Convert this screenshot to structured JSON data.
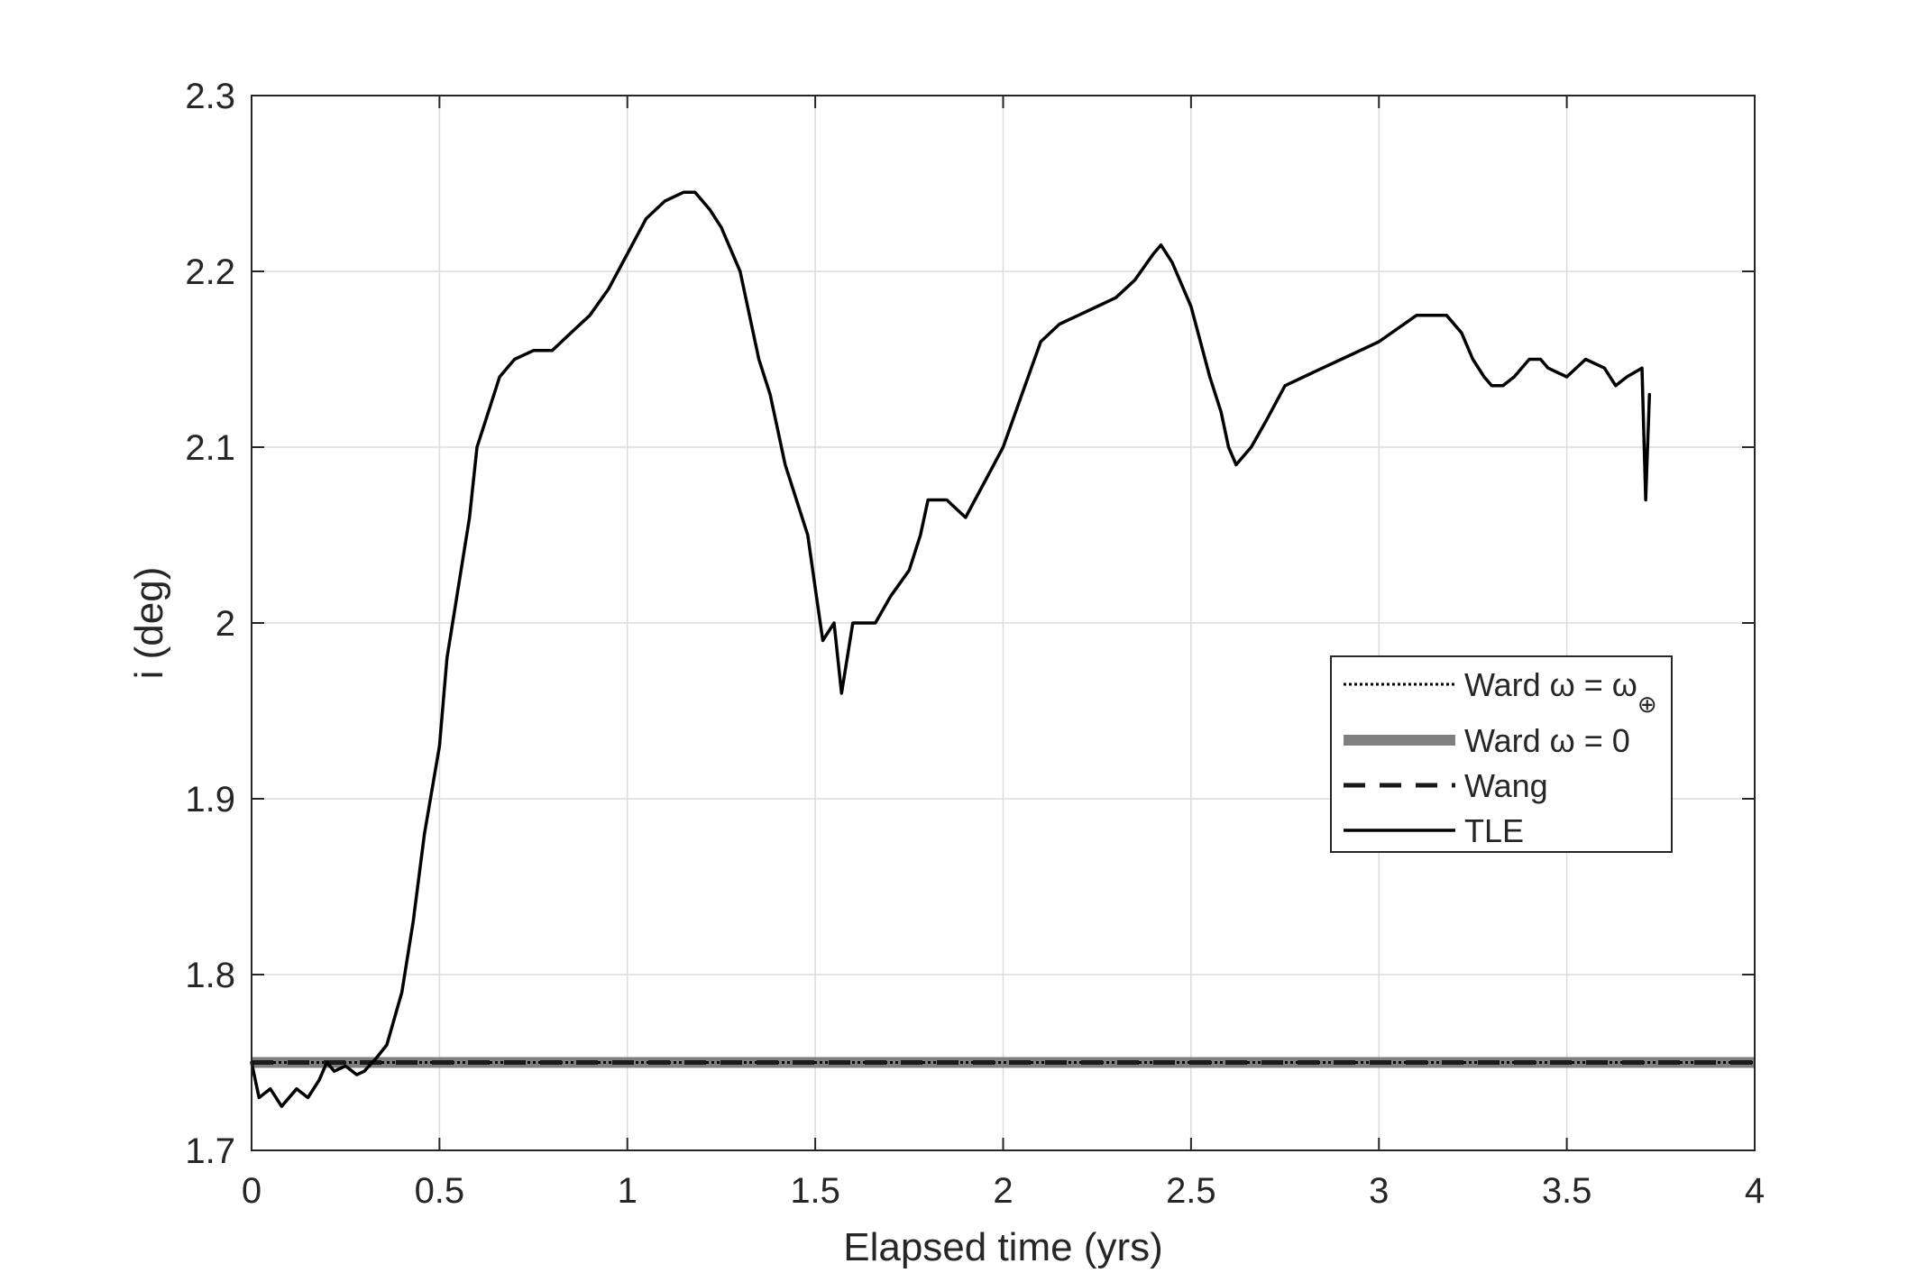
{
  "chart_data": {
    "type": "line",
    "xlabel": "Elapsed time (yrs)",
    "ylabel": "i (deg)",
    "xlim": [
      0,
      4
    ],
    "ylim": [
      1.7,
      2.3
    ],
    "x_ticks": [
      "0",
      "0.5",
      "1",
      "1.5",
      "2",
      "2.5",
      "3",
      "3.5",
      "4"
    ],
    "y_ticks": [
      "1.7",
      "1.8",
      "1.9",
      "2",
      "2.1",
      "2.2",
      "2.3"
    ],
    "grid": true,
    "legend_position": "right",
    "series": [
      {
        "name": "Ward ω = ω⊕",
        "legend_text": "Ward ω = ω",
        "legend_subscript": "⊕",
        "style": "dotted",
        "color": "#000000",
        "x": [
          0,
          4
        ],
        "y": [
          1.75,
          1.75
        ]
      },
      {
        "name": "Ward ω = 0",
        "legend_text": "Ward ω = 0",
        "style": "thick",
        "color": "#808080",
        "x": [
          0,
          4
        ],
        "y": [
          1.75,
          1.75
        ]
      },
      {
        "name": "Wang",
        "legend_text": "Wang",
        "style": "dashed",
        "color": "#1a1a1a",
        "x": [
          0,
          4
        ],
        "y": [
          1.75,
          1.75
        ]
      },
      {
        "name": "TLE",
        "legend_text": "TLE",
        "style": "solid",
        "color": "#000000",
        "x": [
          0,
          0.02,
          0.05,
          0.08,
          0.12,
          0.15,
          0.18,
          0.2,
          0.22,
          0.25,
          0.28,
          0.3,
          0.33,
          0.36,
          0.4,
          0.43,
          0.46,
          0.5,
          0.52,
          0.55,
          0.58,
          0.6,
          0.63,
          0.66,
          0.7,
          0.75,
          0.8,
          0.85,
          0.9,
          0.95,
          1.0,
          1.05,
          1.1,
          1.15,
          1.18,
          1.22,
          1.25,
          1.3,
          1.35,
          1.38,
          1.42,
          1.45,
          1.48,
          1.5,
          1.52,
          1.55,
          1.57,
          1.6,
          1.63,
          1.66,
          1.7,
          1.75,
          1.78,
          1.8,
          1.85,
          1.9,
          1.95,
          2.0,
          2.05,
          2.1,
          2.15,
          2.2,
          2.25,
          2.3,
          2.35,
          2.4,
          2.42,
          2.45,
          2.5,
          2.55,
          2.58,
          2.6,
          2.62,
          2.64,
          2.66,
          2.7,
          2.75,
          2.8,
          2.85,
          2.9,
          3.0,
          3.1,
          3.15,
          3.18,
          3.22,
          3.25,
          3.28,
          3.3,
          3.33,
          3.36,
          3.4,
          3.43,
          3.45,
          3.5,
          3.55,
          3.6,
          3.63,
          3.66,
          3.7,
          3.71,
          3.72
        ],
        "y": [
          1.75,
          1.73,
          1.735,
          1.725,
          1.735,
          1.73,
          1.74,
          1.75,
          1.745,
          1.748,
          1.743,
          1.745,
          1.752,
          1.76,
          1.79,
          1.83,
          1.88,
          1.93,
          1.98,
          2.02,
          2.06,
          2.1,
          2.12,
          2.14,
          2.15,
          2.155,
          2.155,
          2.165,
          2.175,
          2.19,
          2.21,
          2.23,
          2.24,
          2.245,
          2.245,
          2.235,
          2.225,
          2.2,
          2.15,
          2.13,
          2.09,
          2.07,
          2.05,
          2.02,
          1.99,
          2.0,
          1.96,
          2.0,
          2.0,
          2.0,
          2.015,
          2.03,
          2.05,
          2.07,
          2.07,
          2.06,
          2.08,
          2.1,
          2.13,
          2.16,
          2.17,
          2.175,
          2.18,
          2.185,
          2.195,
          2.21,
          2.215,
          2.205,
          2.18,
          2.14,
          2.12,
          2.1,
          2.09,
          2.095,
          2.1,
          2.115,
          2.135,
          2.14,
          2.145,
          2.15,
          2.16,
          2.175,
          2.175,
          2.175,
          2.165,
          2.15,
          2.14,
          2.135,
          2.135,
          2.14,
          2.15,
          2.15,
          2.145,
          2.14,
          2.15,
          2.145,
          2.135,
          2.14,
          2.145,
          2.07,
          2.13
        ]
      }
    ]
  }
}
